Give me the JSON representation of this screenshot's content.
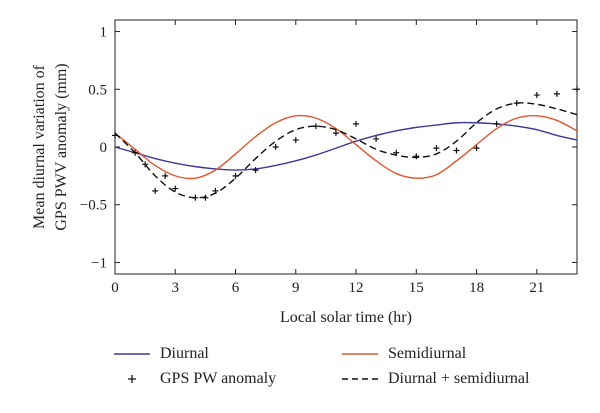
{
  "chart_data": {
    "type": "line",
    "title": "",
    "xlabel": "Local solar time (hr)",
    "ylabel_line1": "Mean diurnal variation of",
    "ylabel_line2": "GPS PWV anomaly (mm)",
    "xlim": [
      0,
      23
    ],
    "ylim": [
      -1.1,
      1.1
    ],
    "xticks": [
      0,
      3,
      6,
      9,
      12,
      15,
      18,
      21
    ],
    "yticks": [
      -1,
      -0.5,
      0,
      0.5,
      1
    ],
    "ytick_labels": [
      "−1",
      "−0.5",
      "0",
      "0.5",
      "1"
    ],
    "grid": false,
    "legend_position": "bottom",
    "series": [
      {
        "name": "Diurnal",
        "style": "solid",
        "color": "#3b3a9a",
        "x": [
          0,
          1,
          2,
          3,
          4,
          5,
          6,
          7,
          8,
          9,
          10,
          11,
          12,
          13,
          14,
          15,
          16,
          17,
          18,
          19,
          20,
          21,
          22,
          23
        ],
        "y": [
          0.0,
          -0.05,
          -0.1,
          -0.14,
          -0.17,
          -0.19,
          -0.2,
          -0.19,
          -0.16,
          -0.12,
          -0.07,
          -0.01,
          0.05,
          0.1,
          0.14,
          0.17,
          0.19,
          0.21,
          0.21,
          0.2,
          0.18,
          0.15,
          0.1,
          0.06
        ]
      },
      {
        "name": "Semidiurnal",
        "style": "solid",
        "color": "#e0542e",
        "x": [
          0,
          1,
          2,
          3,
          4,
          5,
          6,
          7,
          8,
          9,
          10,
          11,
          12,
          13,
          14,
          15,
          16,
          17,
          18,
          19,
          20,
          21,
          22,
          23
        ],
        "y": [
          0.12,
          -0.02,
          -0.16,
          -0.25,
          -0.27,
          -0.2,
          -0.06,
          0.09,
          0.21,
          0.27,
          0.25,
          0.16,
          0.02,
          -0.12,
          -0.23,
          -0.27,
          -0.24,
          -0.12,
          0.02,
          0.16,
          0.25,
          0.27,
          0.23,
          0.14
        ]
      },
      {
        "name": "Diurnal + semidiurnal",
        "style": "dashed",
        "color": "#111111",
        "x": [
          0,
          1,
          2,
          3,
          4,
          5,
          6,
          7,
          8,
          9,
          10,
          11,
          12,
          13,
          14,
          15,
          16,
          17,
          18,
          19,
          20,
          21,
          22,
          23
        ],
        "y": [
          0.12,
          -0.05,
          -0.25,
          -0.39,
          -0.44,
          -0.4,
          -0.27,
          -0.1,
          0.05,
          0.15,
          0.18,
          0.15,
          0.07,
          -0.02,
          -0.07,
          -0.09,
          -0.06,
          0.05,
          0.21,
          0.33,
          0.38,
          0.37,
          0.33,
          0.28
        ]
      },
      {
        "name": "GPS PW anomaly",
        "style": "markers",
        "marker": "+",
        "color": "#111111",
        "x": [
          0,
          1,
          1.5,
          2,
          2.5,
          3,
          4,
          4.5,
          5,
          6,
          7,
          8,
          9,
          10,
          11,
          12,
          13,
          14,
          15,
          16,
          17,
          18,
          19,
          20,
          21,
          22,
          23
        ],
        "y": [
          0.1,
          -0.05,
          -0.15,
          -0.38,
          -0.25,
          -0.36,
          -0.44,
          -0.44,
          -0.38,
          -0.25,
          -0.2,
          0.0,
          0.06,
          0.18,
          0.12,
          0.2,
          0.07,
          -0.05,
          -0.08,
          -0.01,
          -0.03,
          -0.01,
          0.2,
          0.38,
          0.45,
          0.46,
          0.5
        ]
      }
    ]
  }
}
